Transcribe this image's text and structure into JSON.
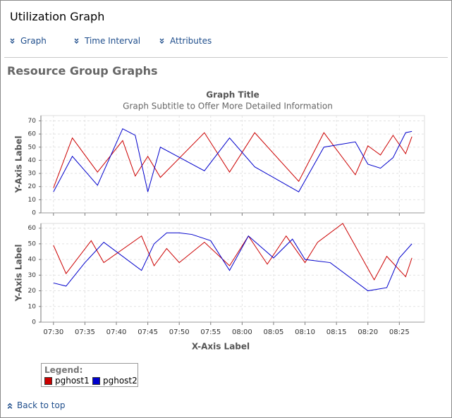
{
  "header": {
    "title": "Utilization Graph"
  },
  "nav": [
    "Graph",
    "Time Interval",
    "Attributes"
  ],
  "section_title": "Resource Group Graphs",
  "chart_data": [
    {
      "type": "line",
      "title": "Graph Title",
      "subtitle": "Graph Subtitle to Offer More Detailed Information",
      "y_label": "Y-Axis Label",
      "xlim": [
        "07:28",
        "08:29"
      ],
      "ylim": [
        0,
        74
      ],
      "yticks": [
        0,
        10,
        20,
        30,
        40,
        50,
        60,
        70
      ],
      "grid": true,
      "series": [
        {
          "name": "pghost1",
          "color": "#cc0000",
          "x": [
            "07:30",
            "07:33",
            "07:37",
            "07:41",
            "07:43",
            "07:45",
            "07:47",
            "07:54",
            "07:58",
            "08:02",
            "08:09",
            "08:13",
            "08:18",
            "08:20",
            "08:22",
            "08:24",
            "08:26",
            "08:27"
          ],
          "values": [
            19,
            57,
            31,
            55,
            28,
            43,
            27,
            61,
            31,
            61,
            24,
            61,
            29,
            51,
            44,
            59,
            45,
            58
          ]
        },
        {
          "name": "pghost2",
          "color": "#0000cc",
          "x": [
            "07:30",
            "07:33",
            "07:37",
            "07:41",
            "07:43",
            "07:45",
            "07:47",
            "07:54",
            "07:58",
            "08:02",
            "08:09",
            "08:13",
            "08:18",
            "08:20",
            "08:22",
            "08:24",
            "08:26",
            "08:27"
          ],
          "values": [
            16,
            43,
            21,
            64,
            59,
            16,
            50,
            32,
            57,
            35,
            16,
            50,
            54,
            37,
            34,
            42,
            61,
            62
          ]
        }
      ]
    },
    {
      "type": "line",
      "y_label": "Y-Axis Label",
      "x_label": "X-Axis Label",
      "xlim": [
        "07:28",
        "08:29"
      ],
      "ylim": [
        0,
        63
      ],
      "yticks": [
        0,
        10,
        20,
        30,
        40,
        50,
        60
      ],
      "grid": true,
      "xticks": [
        "07:30",
        "07:35",
        "07:40",
        "07:45",
        "07:50",
        "07:55",
        "08:00",
        "08:05",
        "08:10",
        "08:15",
        "08:20",
        "08:25"
      ],
      "series": [
        {
          "color": "#cc0000",
          "x": [
            "07:30",
            "07:32",
            "07:36",
            "07:38",
            "07:44",
            "07:46",
            "07:48",
            "07:50",
            "07:54",
            "07:58",
            "08:01",
            "08:04",
            "08:07",
            "08:10",
            "08:12",
            "08:16",
            "08:21",
            "08:23",
            "08:26",
            "08:27"
          ],
          "values": [
            49,
            31,
            52,
            38,
            55,
            36,
            47,
            38,
            51,
            36,
            55,
            37,
            55,
            38,
            51,
            63,
            27,
            42,
            29,
            41
          ]
        },
        {
          "color": "#0000cc",
          "x": [
            "07:30",
            "07:32",
            "07:35",
            "07:38",
            "07:44",
            "07:46",
            "07:48",
            "07:50",
            "07:52",
            "07:55",
            "07:58",
            "08:01",
            "08:05",
            "08:08",
            "08:10",
            "08:14",
            "08:20",
            "08:23",
            "08:25",
            "08:27"
          ],
          "values": [
            25,
            23,
            38,
            51,
            33,
            50,
            57,
            57,
            56,
            52,
            33,
            55,
            41,
            53,
            40,
            38,
            20,
            22,
            41,
            50
          ]
        }
      ]
    }
  ],
  "legend": {
    "title": "Legend:"
  },
  "back_link": "Back to top"
}
